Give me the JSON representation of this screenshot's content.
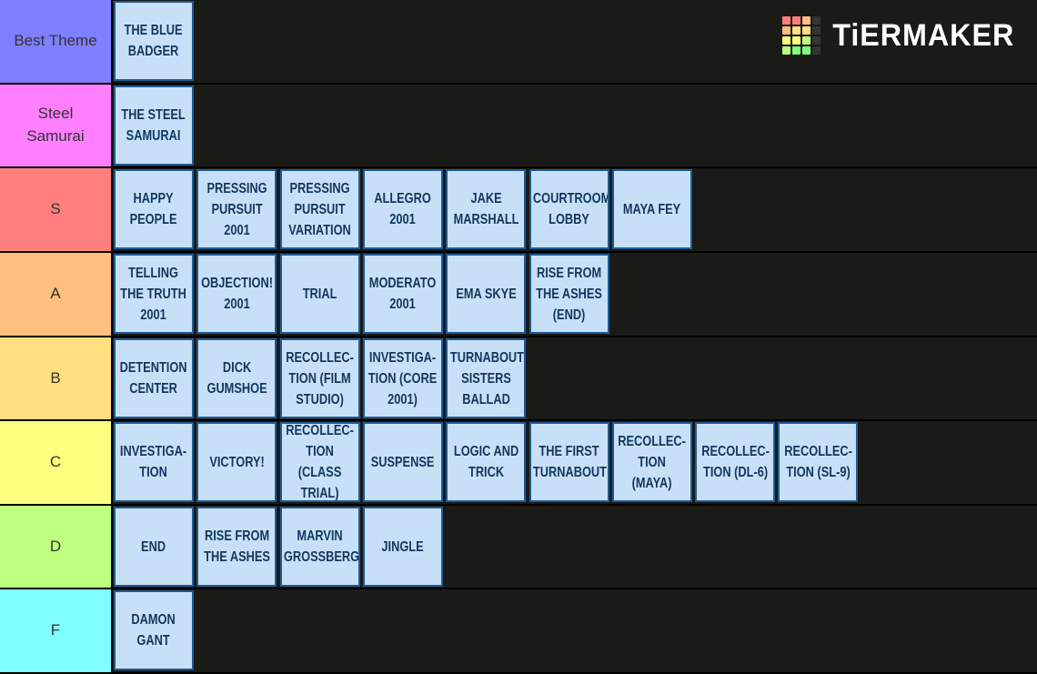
{
  "logo": "TiERMAKER",
  "tiers": [
    {
      "label": "Best Theme",
      "color": "#7f7fff",
      "items": [
        "THE BLUE\nBADGER"
      ]
    },
    {
      "label": "Steel\nSamurai",
      "color": "#ff7fff",
      "items": [
        "THE STEEL\nSAMURAI"
      ]
    },
    {
      "label": "S",
      "color": "#ff7f7f",
      "items": [
        "HAPPY\nPEOPLE",
        "PRESSING\nPURSUIT\n2001",
        "PRESSING\nPURSUIT\nVARIATION",
        "ALLEGRO\n2001",
        "JAKE\nMARSHALL",
        "COURTROOM\nLOBBY",
        "MAYA FEY"
      ]
    },
    {
      "label": "A",
      "color": "#ffbf7f",
      "items": [
        "TELLING\nTHE TRUTH\n2001",
        "OBJECTION!\n2001",
        "TRIAL",
        "MODERATO\n2001",
        "EMA SKYE",
        "RISE FROM\nTHE ASHES\n(END)"
      ]
    },
    {
      "label": "B",
      "color": "#ffdf7f",
      "items": [
        "DETENTION\nCENTER",
        "DICK\nGUMSHOE",
        "RECOLLEC-\nTION (FILM\nSTUDIO)",
        "INVESTIGA-\nTION (CORE\n2001)",
        "TURNABOUT\nSISTERS\nBALLAD"
      ]
    },
    {
      "label": "C",
      "color": "#ffff7f",
      "items": [
        "INVESTIGA-\nTION",
        "VICTORY!",
        "RECOLLEC-\nTION (CLASS\nTRIAL)",
        "SUSPENSE",
        "LOGIC AND\nTRICK",
        "THE FIRST\nTURNABOUT",
        "RECOLLEC-\nTION\n(MAYA)",
        "RECOLLEC-\nTION (DL-6)",
        "RECOLLEC-\nTION (SL-9)"
      ]
    },
    {
      "label": "D",
      "color": "#bfff7f",
      "items": [
        "END",
        "RISE FROM\nTHE ASHES",
        "MARVIN\nGROSSBERG",
        "JINGLE"
      ]
    },
    {
      "label": "F",
      "color": "#7fffff",
      "items": [
        "DAMON\nGANT"
      ]
    }
  ]
}
